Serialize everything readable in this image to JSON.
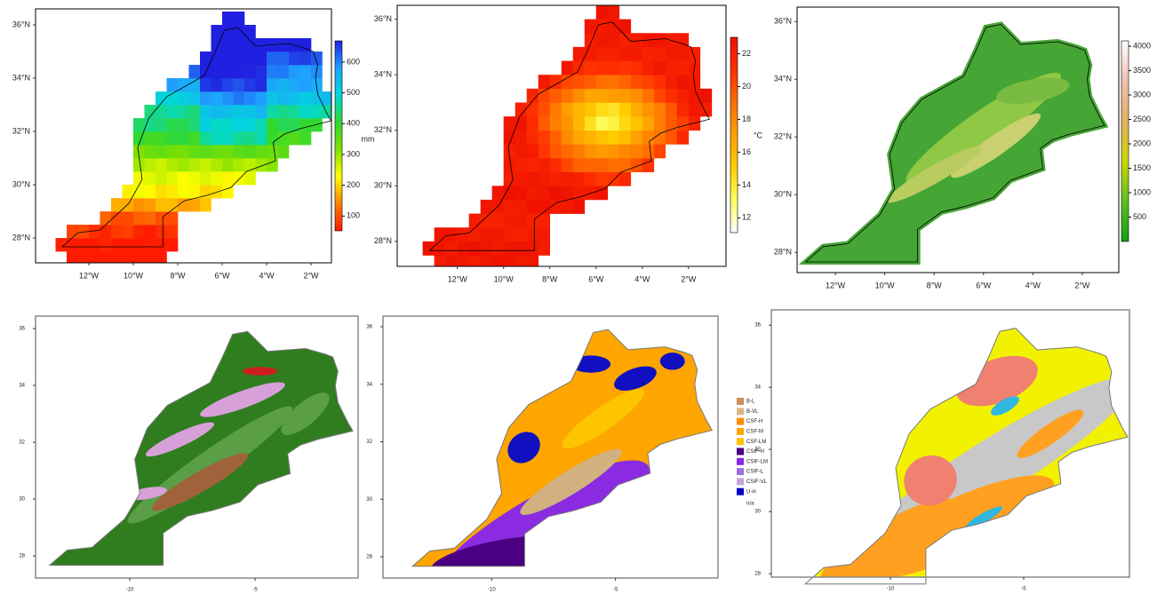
{
  "panels": [
    {
      "xlim": [
        -14.4,
        -1.08
      ],
      "ylim": [
        27.07,
        36.6
      ],
      "xticks": [
        {
          "value": -12,
          "label": "12°W"
        },
        {
          "value": -10,
          "label": "10°W"
        },
        {
          "value": -8,
          "label": "8°W"
        },
        {
          "value": -6,
          "label": "6°W"
        },
        {
          "value": -4,
          "label": "4°W"
        },
        {
          "value": -2,
          "label": "2°W"
        }
      ],
      "yticks": [
        {
          "value": 28,
          "label": "28°N"
        },
        {
          "value": 30,
          "label": "30°N"
        },
        {
          "value": 32,
          "label": "32°N"
        },
        {
          "value": 34,
          "label": "34°N"
        },
        {
          "value": 36,
          "label": "36°N"
        }
      ],
      "colorbar": {
        "unit": "mm",
        "lim": [
          52,
          669
        ],
        "ticks": [
          100,
          200,
          300,
          400,
          500,
          600
        ],
        "colors": [
          "#ff1a00",
          "#ff8000",
          "#ffff00",
          "#80e000",
          "#30d830",
          "#00d8d8",
          "#20a0ff",
          "#2020e0"
        ]
      }
    },
    {
      "xlim": [
        -14.6,
        -0.38
      ],
      "ylim": [
        27.1,
        36.5
      ],
      "xticks": [
        {
          "value": -12,
          "label": "12°W"
        },
        {
          "value": -10,
          "label": "10°W"
        },
        {
          "value": -8,
          "label": "8°W"
        },
        {
          "value": -6,
          "label": "6°W"
        },
        {
          "value": -4,
          "label": "4°W"
        },
        {
          "value": -2,
          "label": "2°W"
        }
      ],
      "yticks": [
        {
          "value": 28,
          "label": "28°N"
        },
        {
          "value": 30,
          "label": "30°N"
        },
        {
          "value": 32,
          "label": "32°N"
        },
        {
          "value": 34,
          "label": "34°N"
        },
        {
          "value": 36,
          "label": "36°N"
        }
      ],
      "colorbar": {
        "unit": "°C",
        "lim": [
          11.1,
          23
        ],
        "ticks": [
          12,
          14,
          16,
          18,
          20,
          22
        ],
        "colors": [
          "#ffffff",
          "#ffff60",
          "#ffd000",
          "#ffa000",
          "#ff7000",
          "#ff3000",
          "#ee1000"
        ]
      }
    },
    {
      "xlim": [
        -13.55,
        -0.52
      ],
      "ylim": [
        27.3,
        36.5
      ],
      "xticks": [
        {
          "value": -12,
          "label": "12°W"
        },
        {
          "value": -10,
          "label": "10°W"
        },
        {
          "value": -8,
          "label": "8°W"
        },
        {
          "value": -6,
          "label": "6°W"
        },
        {
          "value": -4,
          "label": "4°W"
        },
        {
          "value": -2,
          "label": "2°W"
        }
      ],
      "yticks": [
        {
          "value": 28,
          "label": "28°N"
        },
        {
          "value": 30,
          "label": "30°N"
        },
        {
          "value": 32,
          "label": "32°N"
        },
        {
          "value": 34,
          "label": "34°N"
        },
        {
          "value": 36,
          "label": "36°N"
        }
      ],
      "colorbar": {
        "lim": [
          0,
          4110
        ],
        "ticks": [
          500,
          1000,
          1500,
          2000,
          2500,
          3000,
          3500,
          4000
        ],
        "colors": [
          "#10a010",
          "#60c020",
          "#c8d800",
          "#e8b060",
          "#f0c0b0",
          "#ffffff"
        ]
      }
    },
    {
      "xlim": [
        -13.76,
        -0.89
      ],
      "ylim": [
        27.22,
        36.44
      ],
      "xticks": [
        -10,
        -5
      ],
      "yticks": [
        28,
        30,
        32,
        34,
        36
      ]
    },
    {
      "xlim": [
        -14.39,
        -0.86
      ],
      "ylim": [
        27.26,
        36.37
      ],
      "xticks": [
        -10,
        -5
      ],
      "yticks": [
        28,
        30,
        32,
        34,
        36
      ],
      "legend": [
        {
          "label": "B-L",
          "color": "#c8915a"
        },
        {
          "label": "B-VL",
          "color": "#dcb888"
        },
        {
          "label": "CSF-H",
          "color": "#ff8c00"
        },
        {
          "label": "CSF-M",
          "color": "#ffa500"
        },
        {
          "label": "CSF-LM",
          "color": "#ffc400"
        },
        {
          "label": "CSIF-H",
          "color": "#4b0082"
        },
        {
          "label": "CSIF-LM",
          "color": "#8a2be2"
        },
        {
          "label": "CSIF-L",
          "color": "#9b6fe0"
        },
        {
          "label": "CSIF-VL",
          "color": "#c8a2e0"
        },
        {
          "label": "U-H",
          "color": "#0000cd"
        },
        {
          "label": "n/a"
        }
      ]
    },
    {
      "xlim": [
        -14.47,
        -1.03
      ],
      "ylim": [
        27.89,
        36.49
      ],
      "xticks": [
        -10,
        -5
      ],
      "yticks": [
        28,
        30,
        32,
        34,
        36
      ]
    }
  ]
}
